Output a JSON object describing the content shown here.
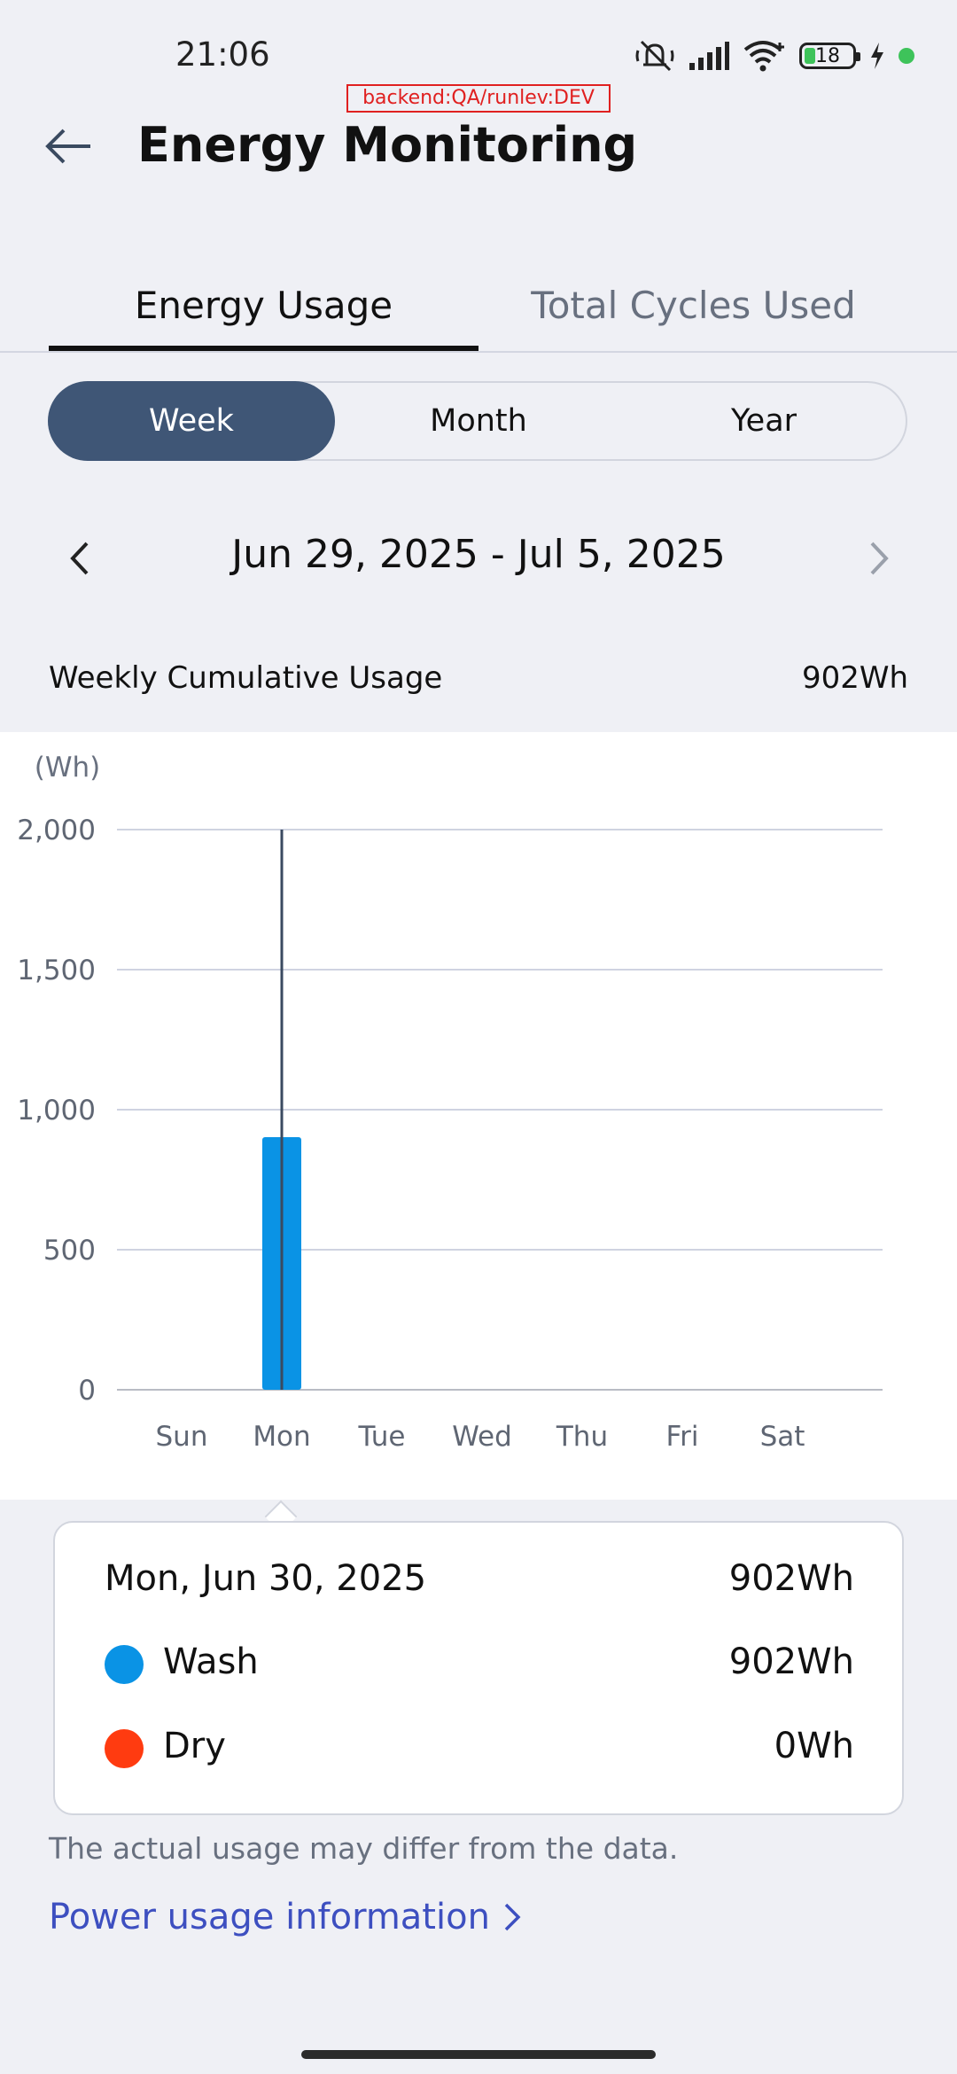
{
  "status_bar": {
    "time": "21:06",
    "battery": "18",
    "icons": [
      "mute-icon",
      "signal-icon",
      "wifi-icon",
      "battery-icon",
      "charging-icon"
    ]
  },
  "debug_badge": "backend:QA/runlev:DEV",
  "header": {
    "title": "Energy Monitoring"
  },
  "tabs": [
    {
      "label": "Energy Usage",
      "selected": true
    },
    {
      "label": "Total Cycles Used",
      "selected": false
    }
  ],
  "period": {
    "options": [
      "Week",
      "Month",
      "Year"
    ],
    "selected": "Week"
  },
  "date_range": "Jun 29, 2025 - Jul 5, 2025",
  "summary": {
    "label": "Weekly Cumulative Usage",
    "value": "902Wh"
  },
  "chart_data": {
    "type": "bar",
    "unit_label": "(Wh)",
    "categories": [
      "Sun",
      "Mon",
      "Tue",
      "Wed",
      "Thu",
      "Fri",
      "Sat"
    ],
    "series": [
      {
        "name": "Wash",
        "values": [
          0,
          902,
          0,
          0,
          0,
          0,
          0
        ]
      },
      {
        "name": "Dry",
        "values": [
          0,
          0,
          0,
          0,
          0,
          0,
          0
        ]
      }
    ],
    "ylim": [
      0,
      2000
    ],
    "yticks": [
      0,
      500,
      1000,
      1500,
      2000
    ],
    "ytick_labels": [
      "0",
      "500",
      "1,000",
      "1,500",
      "2,000"
    ],
    "selected_category": "Mon",
    "grid": true
  },
  "detail": {
    "date": "Mon, Jun 30, 2025",
    "total": "902Wh",
    "rows": [
      {
        "label": "Wash",
        "value": "902Wh"
      },
      {
        "label": "Dry",
        "value": "0Wh"
      }
    ]
  },
  "colors": {
    "wash": "#0a93e5",
    "dry": "#ff3b10",
    "accent": "#3f5676",
    "link": "#3d4fc0"
  },
  "disclaimer": "The actual usage may differ from the data.",
  "power_link": "Power usage information"
}
